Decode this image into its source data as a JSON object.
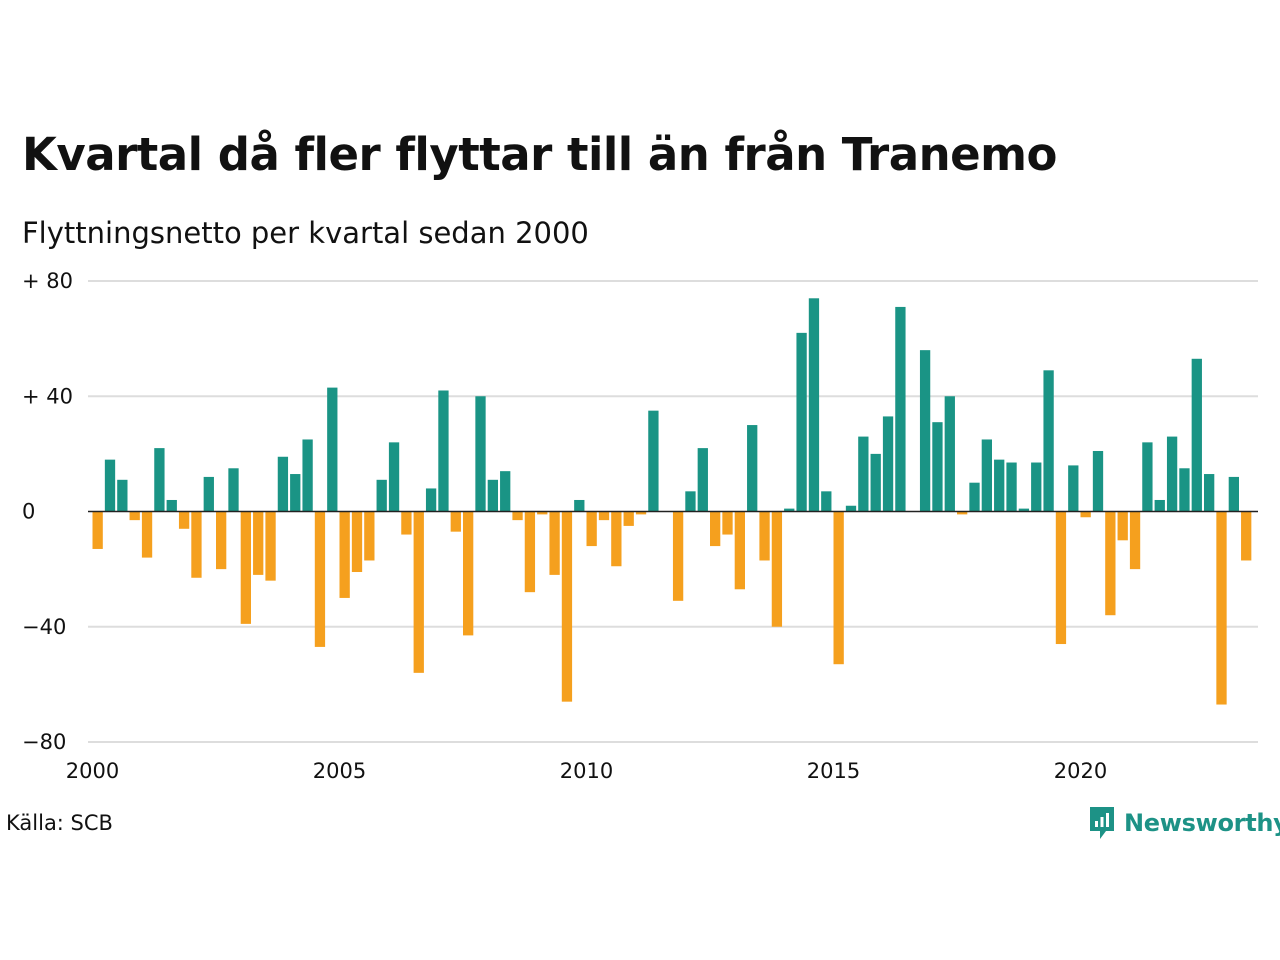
{
  "header": {
    "title": "Kvartal då fler flyttar till än från Tranemo",
    "subtitle": "Flyttningsnetto per kvartal sedan 2000"
  },
  "footer": {
    "source": "Källa: SCB",
    "brand": "Newsworthy"
  },
  "colors": {
    "positive": "#1a9485",
    "negative": "#f5a01e",
    "grid": "#dddddd",
    "zero_line": "#222222",
    "brand": "#1d9286"
  },
  "icons": {
    "logo": "newsworthy-chart-bubble-icon"
  },
  "chart_data": {
    "type": "bar",
    "title": "Kvartal då fler flyttar till än från Tranemo",
    "subtitle": "Flyttningsnetto per kvartal sedan 2000",
    "x_start": "2000-Q1",
    "frequency": "quarterly",
    "ylim": [
      -80,
      80
    ],
    "y_ticks": [
      80,
      40,
      0,
      -40,
      -80
    ],
    "y_tick_labels": [
      "+ 80",
      "+ 40",
      "0",
      "−40",
      "−80"
    ],
    "x_ticks": [
      "2000",
      "2005",
      "2010",
      "2015",
      "2020"
    ],
    "grid": true,
    "values": [
      -13,
      18,
      11,
      -3,
      -16,
      22,
      4,
      -6,
      -23,
      12,
      -20,
      15,
      -39,
      -22,
      -24,
      19,
      13,
      25,
      -47,
      43,
      -30,
      -21,
      -17,
      11,
      24,
      -8,
      -56,
      8,
      42,
      -7,
      -43,
      40,
      11,
      14,
      -3,
      -28,
      -1,
      -22,
      -66,
      4,
      -12,
      -3,
      -19,
      -5,
      -1,
      35,
      0,
      -31,
      7,
      22,
      -12,
      -8,
      -27,
      30,
      -17,
      -40,
      1,
      62,
      74,
      7,
      -53,
      2,
      26,
      20,
      33,
      71,
      0,
      56,
      31,
      40,
      -1,
      10,
      25,
      18,
      17,
      1,
      17,
      49,
      -46,
      16,
      -2,
      21,
      -36,
      -10,
      -20,
      24,
      4,
      26,
      15,
      53,
      13,
      -67,
      12,
      -17
    ]
  }
}
